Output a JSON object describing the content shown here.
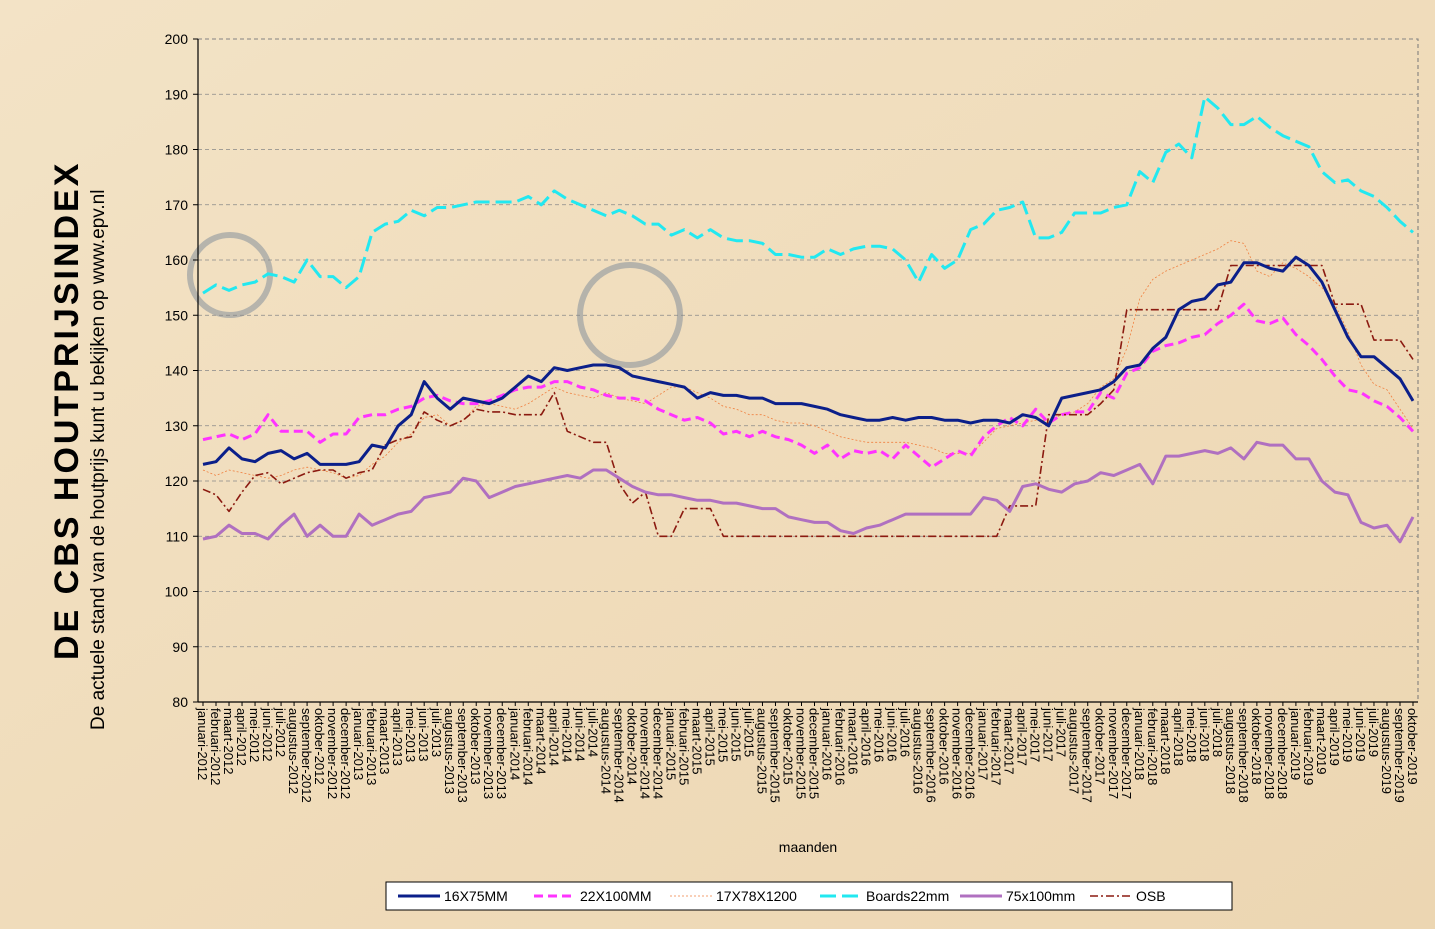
{
  "chart_data": {
    "type": "line",
    "title": "DE CBS HOUTPRIJSINDEX",
    "subtitle": "De actuele stand van de houtprijs kunt u bekijken op www.epv.nl",
    "x_label": "maanden",
    "categories": [
      "januari-2012",
      "februari-2012",
      "maart-2012",
      "april-2012",
      "mei-2012",
      "juni-2012",
      "juli-2012",
      "augustus-2012",
      "september-2012",
      "oktober-2012",
      "november-2012",
      "december-2012",
      "januari-2013",
      "februari-2013",
      "maart-2013",
      "april-2013",
      "mei-2013",
      "juni-2013",
      "juli-2013",
      "augustus-2013",
      "september-2013",
      "oktober-2013",
      "november-2013",
      "december-2013",
      "januari-2014",
      "februari-2014",
      "maart-2014",
      "april-2014",
      "mei-2014",
      "juni-2014",
      "juli-2014",
      "augustus-2014",
      "september-2014",
      "oktober-2014",
      "november-2014",
      "december-2014",
      "januari-2015",
      "februari-2015",
      "maart-2015",
      "april-2015",
      "mei-2015",
      "juni-2015",
      "juli-2015",
      "augustus-2015",
      "september-2015",
      "oktober-2015",
      "november-2015",
      "december-2015",
      "januari-2016",
      "februari-2016",
      "maart-2016",
      "april-2016",
      "mei-2016",
      "juni-2016",
      "juli-2016",
      "augustus-2016",
      "september-2016",
      "oktober-2016",
      "november-2016",
      "december-2016",
      "januari-2017",
      "februari-2017",
      "maart-2017",
      "april-2017",
      "mei-2017",
      "juni-2017",
      "juli-2017",
      "augustus-2017",
      "september-2017",
      "oktober-2017",
      "november-2017",
      "december-2017",
      "januari-2018",
      "februari-2018",
      "maart-2018",
      "april-2018",
      "mei-2018",
      "juni-2018",
      "juli-2018",
      "augustus-2018",
      "september-2018",
      "oktober-2018",
      "november-2018",
      "december-2018",
      "januari-2019",
      "februari-2019",
      "maart-2019",
      "april-2019",
      "mei-2019",
      "juni-2019",
      "juli-2019",
      "augustus-2019",
      "september-2019",
      "oktober-2019"
    ],
    "series": [
      {
        "name": "16X75MM",
        "color": "#0b1f8a",
        "values": [
          123,
          123.5,
          126,
          124,
          123.5,
          125,
          125.5,
          124,
          125,
          123,
          123,
          123,
          123.5,
          126.5,
          126,
          130,
          132,
          138,
          135,
          133,
          135,
          134.5,
          134,
          135,
          137,
          139,
          138,
          140.5,
          140,
          140.5,
          141,
          141,
          140.5,
          139,
          138.5,
          138,
          137.5,
          137,
          135,
          136,
          135.5,
          135.5,
          135,
          135,
          134,
          134,
          134,
          133.5,
          133,
          132,
          131.5,
          131,
          131,
          131.5,
          131,
          131.5,
          131.5,
          131,
          131,
          130.5,
          131,
          131,
          130.5,
          132,
          131.5,
          130,
          135,
          135.5,
          136,
          136.5,
          138,
          140.5,
          141,
          144,
          146,
          151,
          152.5,
          153,
          155.5,
          156,
          159.5,
          159.5,
          158.5,
          158,
          160.5,
          159,
          156,
          151,
          146,
          142.5,
          142.5,
          140.5,
          138.5,
          134.5
        ]
      },
      {
        "name": "22X100MM",
        "color": "#ff33ff",
        "values": [
          127.5,
          128,
          128.5,
          127.5,
          128.5,
          132,
          129,
          129,
          129,
          127,
          128.5,
          128.5,
          131.5,
          132,
          132,
          133,
          133.5,
          135,
          135.5,
          134.5,
          134,
          134,
          134.5,
          135.5,
          136.5,
          137,
          137,
          138,
          138,
          137,
          136.5,
          135.5,
          135,
          135,
          134.5,
          133,
          132,
          131,
          131.5,
          130.5,
          128.5,
          129,
          128,
          129,
          128,
          127.5,
          126.5,
          125,
          126.5,
          124,
          125.5,
          125,
          125.5,
          124,
          126.5,
          124.5,
          122.5,
          124,
          125.5,
          124.5,
          128,
          130,
          131.5,
          130,
          133,
          130.5,
          132,
          132.5,
          132.5,
          136,
          135,
          139.5,
          140.5,
          143.5,
          144.5,
          145,
          146,
          146.5,
          148.5,
          150,
          152,
          149,
          148.5,
          149.5,
          146.5,
          144.5,
          142,
          139,
          136.5,
          136,
          134.5,
          133.5,
          131.5,
          129
        ]
      },
      {
        "name": "17X78X1200",
        "color": "#f08040",
        "values": [
          122,
          121,
          122,
          121.5,
          121,
          120.5,
          121,
          122,
          122.5,
          122,
          121.5,
          120.5,
          121,
          123,
          124.5,
          127,
          128.5,
          131.5,
          132,
          130,
          131,
          133.5,
          134,
          133.5,
          133,
          134,
          135.5,
          137,
          136,
          135.5,
          135,
          136,
          135,
          134.5,
          134,
          135.5,
          137,
          137,
          136,
          135,
          133.5,
          133,
          132,
          132,
          131,
          130.5,
          130.5,
          130,
          129,
          128,
          127.5,
          127,
          127,
          127,
          127,
          126.5,
          126,
          125,
          125,
          125,
          127,
          129.5,
          130,
          130.5,
          131,
          131,
          132,
          132.5,
          134,
          137,
          138.5,
          144,
          153,
          156.5,
          158,
          159,
          160,
          161,
          162,
          163.5,
          163,
          158,
          157,
          159.5,
          158.5,
          157,
          155,
          152,
          147,
          141,
          137.5,
          136.5,
          133,
          129.5
        ]
      },
      {
        "name": "Boards22mm",
        "color": "#22e8f0",
        "values": [
          154,
          155.5,
          154.5,
          155.5,
          156,
          157.5,
          157,
          156,
          160,
          157,
          157,
          155,
          157,
          165,
          166.5,
          167,
          169,
          168,
          169.5,
          169.5,
          170,
          170.5,
          170.5,
          170.5,
          170.5,
          171.5,
          170,
          172.5,
          171,
          170,
          169,
          168,
          169,
          168,
          166.5,
          166.5,
          164.5,
          165.5,
          164,
          165.5,
          164,
          163.5,
          163.5,
          163,
          161,
          161,
          160.5,
          160.5,
          162,
          161,
          162,
          162.5,
          162.5,
          162,
          160,
          156,
          161,
          158.5,
          160,
          165.5,
          166.5,
          169,
          169.5,
          170.5,
          164,
          164,
          165,
          168.5,
          168.5,
          168.5,
          169.5,
          170,
          176,
          174,
          179.5,
          181,
          178.5,
          189.5,
          187.5,
          184.5,
          184.5,
          186,
          184,
          182.5,
          181.5,
          180.5,
          176,
          174,
          174.5,
          172.5,
          171.5,
          169.5,
          167,
          165
        ]
      },
      {
        "name": "75x100mm",
        "color": "#b070c0",
        "values": [
          109.5,
          110,
          112,
          110.5,
          110.5,
          109.5,
          112,
          114,
          110,
          112,
          110,
          110,
          114,
          112,
          113,
          114,
          114.5,
          117,
          117.5,
          118,
          120.5,
          120,
          117,
          118,
          119,
          119.5,
          120,
          120.5,
          121,
          120.5,
          122,
          122,
          120.5,
          119,
          118,
          117.5,
          117.5,
          117,
          116.5,
          116.5,
          116,
          116,
          115.5,
          115,
          115,
          113.5,
          113,
          112.5,
          112.5,
          111,
          110.5,
          111.5,
          112,
          113,
          114,
          114,
          114,
          114,
          114,
          114,
          117,
          116.5,
          114.5,
          119,
          119.5,
          118.5,
          118,
          119.5,
          120,
          121.5,
          121,
          122,
          123,
          119.5,
          124.5,
          124.5,
          125,
          125.5,
          125,
          126,
          124,
          127,
          126.5,
          126.5,
          124,
          124,
          120,
          118,
          117.5,
          112.5,
          111.5,
          112,
          109,
          113.5
        ]
      },
      {
        "name": "OSB",
        "color": "#8b1a10",
        "values": [
          118.5,
          117.5,
          114.5,
          118,
          121,
          121.5,
          119.5,
          120.5,
          121.5,
          122,
          122,
          120.5,
          121.5,
          122,
          126.5,
          127.5,
          128,
          132.5,
          131,
          130,
          131,
          133,
          132.5,
          132.5,
          132,
          132,
          132,
          136,
          129,
          128,
          127,
          127,
          119.5,
          116,
          118,
          110,
          110,
          115,
          115,
          115,
          110,
          110,
          110,
          110,
          110,
          110,
          110,
          110,
          110,
          110,
          110,
          110,
          110,
          110,
          110,
          110,
          110,
          110,
          110,
          110,
          110,
          110,
          115.5,
          115.5,
          115.5,
          132,
          132,
          132,
          132,
          134,
          136.5,
          151,
          151,
          151,
          151,
          151,
          151,
          151,
          151,
          159,
          159,
          159,
          159,
          159,
          159,
          159,
          159,
          152,
          152,
          152,
          145.5,
          145.5,
          145.5,
          142
        ]
      }
    ],
    "ylim": [
      80,
      200
    ],
    "yticks": [
      80,
      90,
      100,
      110,
      120,
      130,
      140,
      150,
      160,
      170,
      180,
      190,
      200
    ],
    "grid": true
  }
}
